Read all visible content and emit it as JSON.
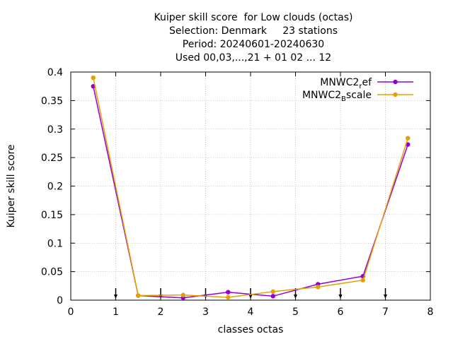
{
  "chart_data": {
    "type": "line",
    "title_lines": [
      "Kuiper skill score  for Low clouds (octas)",
      "Selection: Denmark     23 stations",
      "Period: 20240601-20240630",
      "Used 00,03,...,21 + 01 02 ... 12"
    ],
    "xlabel": "classes octas",
    "ylabel": "Kuiper skill score",
    "xlim": [
      0,
      8
    ],
    "ylim": [
      0,
      0.4
    ],
    "x_ticks": [
      "0",
      "1",
      "2",
      "3",
      "4",
      "5",
      "6",
      "7",
      "8"
    ],
    "y_ticks": [
      "0",
      "0.05",
      "0.1",
      "0.15",
      "0.2",
      "0.25",
      "0.3",
      "0.35",
      "0.4"
    ],
    "grid": true,
    "legend_position": "top-right",
    "arrow_markers_x": [
      1,
      2,
      3,
      4,
      5,
      6,
      7
    ],
    "x": [
      0.5,
      1.5,
      2.5,
      3.5,
      4.5,
      5.5,
      6.5,
      7.5
    ],
    "series": [
      {
        "name_main": "MNWC2",
        "name_sub": "r",
        "name_tail": "ef",
        "color": "#9400d3",
        "values": [
          0.375,
          0.008,
          0.004,
          0.014,
          0.007,
          0.028,
          0.042,
          0.273
        ]
      },
      {
        "name_main": "MNWC2",
        "name_sub": "B",
        "name_tail": "scale",
        "color": "#e69f00",
        "values": [
          0.39,
          0.008,
          0.009,
          0.005,
          0.015,
          0.023,
          0.035,
          0.284
        ]
      }
    ]
  }
}
